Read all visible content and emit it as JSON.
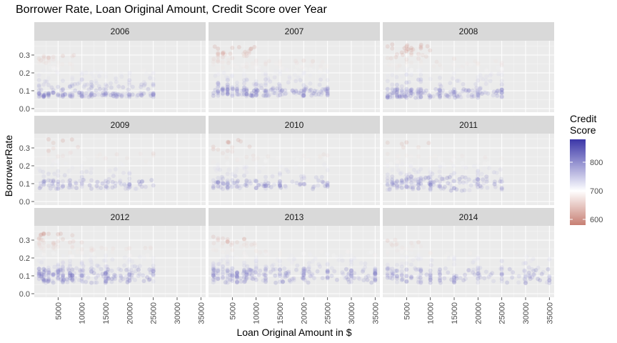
{
  "chart_data": {
    "type": "scatter",
    "title": "Borrower Rate, Loan Original Amount, Credit Score over Year",
    "xlabel": "Loan Original Amount in $",
    "ylabel": "BorrowerRate",
    "xlim": [
      0,
      36000
    ],
    "ylim": [
      -0.02,
      0.38
    ],
    "x_ticks": [
      5000,
      10000,
      15000,
      20000,
      25000,
      30000,
      35000
    ],
    "x_tick_labels": [
      "5000",
      "10000",
      "15000",
      "20000",
      "25000",
      "30000",
      "35000"
    ],
    "y_ticks": [
      0.0,
      0.1,
      0.2,
      0.3
    ],
    "y_tick_labels": [
      "0.0",
      "0.1",
      "0.2",
      "0.3"
    ],
    "facets": [
      "2006",
      "2007",
      "2008",
      "2009",
      "2010",
      "2011",
      "2012",
      "2013",
      "2014"
    ],
    "legend": {
      "title": "Credit Score",
      "ticks": [
        600,
        700,
        800
      ],
      "tick_labels": [
        "600",
        "700",
        "800"
      ],
      "range": [
        580,
        880
      ],
      "colors": {
        "low": "#c77f73",
        "mid": "#ffffff",
        "high": "#3b36a8"
      },
      "position": "right"
    },
    "facet_profiles": {
      "2006": {
        "max_amount": 25000,
        "high_rate_max": 0.3,
        "low_rate": [
          0.065,
          0.09
        ],
        "density": 1.0
      },
      "2007": {
        "max_amount": 25000,
        "high_rate_max": 0.35,
        "low_rate": [
          0.07,
          0.11
        ],
        "density": 1.3
      },
      "2008": {
        "max_amount": 25000,
        "high_rate_max": 0.36,
        "low_rate": [
          0.06,
          0.11
        ],
        "density": 1.2
      },
      "2009": {
        "max_amount": 25000,
        "high_rate_max": 0.35,
        "low_rate": [
          0.07,
          0.12
        ],
        "density": 0.6
      },
      "2010": {
        "max_amount": 25000,
        "high_rate_max": 0.35,
        "low_rate": [
          0.07,
          0.12
        ],
        "density": 0.7
      },
      "2011": {
        "max_amount": 25000,
        "high_rate_max": 0.34,
        "low_rate": [
          0.06,
          0.14
        ],
        "density": 0.9
      },
      "2012": {
        "max_amount": 25000,
        "high_rate_max": 0.34,
        "low_rate": [
          0.06,
          0.14
        ],
        "density": 1.3
      },
      "2013": {
        "max_amount": 35000,
        "high_rate_max": 0.32,
        "low_rate": [
          0.06,
          0.14
        ],
        "density": 1.4
      },
      "2014": {
        "max_amount": 35000,
        "high_rate_max": 0.31,
        "low_rate": [
          0.06,
          0.14
        ],
        "density": 0.9
      }
    },
    "grid": true,
    "panel_background": "#ebebeb",
    "strip_background": "#d9d9d9"
  }
}
